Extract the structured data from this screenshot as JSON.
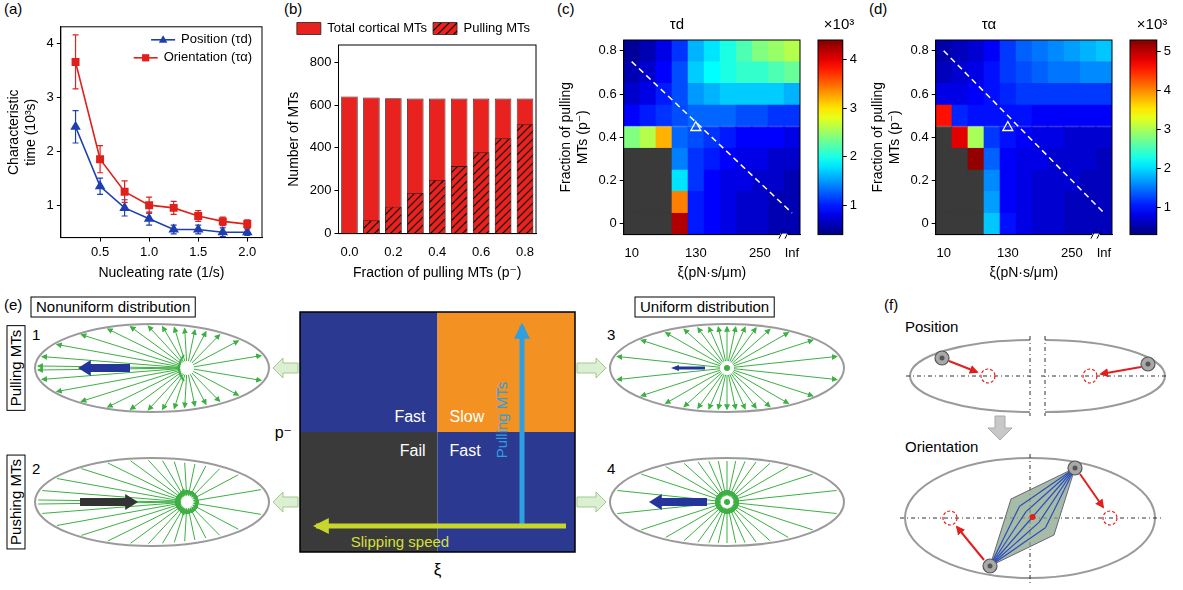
{
  "chart_data": [
    {
      "type": "line",
      "panel_label": "(a)",
      "x": [
        0.25,
        0.5,
        0.75,
        1.0,
        1.25,
        1.5,
        1.75,
        2.0
      ],
      "xlabel": "Nucleating rate (1/s)",
      "ylabel": "Characteristic time (10³s)",
      "xlim": [
        0.1,
        2.15
      ],
      "xticks": [
        0.5,
        {
          "value": 1,
          "label": "1.0"
        },
        1.5,
        {
          "value": 2,
          "label": "2.0"
        }
      ],
      "ylim": [
        0.4,
        4.3
      ],
      "yticks": [
        1,
        2,
        3,
        4
      ],
      "legend": "upper-right",
      "series": [
        {
          "name": "Position (τd)",
          "color": "#1f3fb0",
          "marker": "triangle",
          "values": [
            2.45,
            1.35,
            0.95,
            0.75,
            0.55,
            0.55,
            0.5,
            0.5
          ],
          "errors": [
            0.3,
            0.15,
            0.15,
            0.12,
            0.08,
            0.08,
            0.08,
            0.06
          ]
        },
        {
          "name": "Orientation (τα)",
          "color": "#e0201b",
          "marker": "square",
          "values": [
            3.65,
            1.85,
            1.25,
            1.0,
            0.95,
            0.8,
            0.7,
            0.65
          ],
          "errors": [
            0.5,
            0.25,
            0.2,
            0.15,
            0.12,
            0.1,
            0.08,
            0.08
          ]
        }
      ]
    },
    {
      "type": "bar",
      "panel_label": "(b)",
      "categories": [
        "0.0",
        null,
        "0.2",
        null,
        "0.4",
        null,
        "0.6",
        null,
        "0.8"
      ],
      "xlabel": "Fraction of pulling MTs (p⁻)",
      "ylabel": "Number of MTs",
      "ylim": [
        0,
        880
      ],
      "yticks": [
        0,
        200,
        400,
        600,
        800
      ],
      "legend": "top",
      "stacked": false,
      "series": [
        {
          "name": "Total cortical MTs",
          "color": "#e8231f",
          "values": [
            640,
            635,
            632,
            630,
            630,
            630,
            630,
            630,
            630
          ]
        },
        {
          "name": "Pulling MTs",
          "color": "#e8231f",
          "values": [
            0,
            62,
            125,
            190,
            250,
            315,
            380,
            445,
            510
          ]
        }
      ]
    },
    {
      "type": "heatmap",
      "panel_label": "(c)",
      "title": "τd",
      "categories": [
        10,
        null,
        null,
        null,
        130,
        null,
        null,
        null,
        250,
        null,
        "Inf"
      ],
      "xlabel": "ξ(pN·s/μm)",
      "y": [
        0,
        0.1,
        0.2,
        0.3,
        0.4,
        0.5,
        0.6,
        0.7,
        0.8
      ],
      "ylabel": "Fraction of pulling MTs (p⁻)",
      "ylim": [
        -0.05,
        0.85
      ],
      "yticks": [
        0,
        0.2,
        0.4,
        0.6,
        0.8
      ],
      "cells": [
        [
          null,
          null,
          null,
          4.2,
          1.0,
          0.9,
          0.8,
          0.7,
          0.7,
          0.6,
          0.6
        ],
        [
          null,
          null,
          null,
          3.4,
          1.0,
          0.9,
          0.8,
          0.7,
          0.7,
          0.6,
          0.6
        ],
        [
          null,
          null,
          null,
          1.8,
          1.1,
          0.9,
          0.8,
          0.8,
          0.7,
          0.7,
          0.6
        ],
        [
          null,
          null,
          null,
          1.4,
          1.1,
          1.0,
          0.9,
          0.8,
          0.8,
          0.7,
          0.7
        ],
        [
          2.4,
          2.6,
          3.2,
          1.3,
          1.2,
          1.1,
          1.0,
          0.9,
          0.9,
          0.9,
          0.8
        ],
        [
          0.9,
          1.0,
          1.1,
          1.2,
          1.3,
          1.3,
          1.3,
          1.2,
          1.2,
          1.1,
          1.1
        ],
        [
          0.7,
          0.8,
          1.0,
          1.2,
          1.5,
          1.6,
          1.7,
          1.7,
          1.7,
          1.7,
          1.6
        ],
        [
          0.6,
          0.7,
          0.9,
          1.2,
          1.7,
          1.9,
          2.0,
          2.1,
          2.1,
          2.2,
          2.3
        ],
        [
          0.5,
          0.6,
          0.8,
          1.1,
          1.6,
          1.8,
          2.0,
          2.2,
          2.4,
          2.5,
          2.6
        ]
      ],
      "colorbar": {
        "label": "×10³",
        "lim": [
          0.4,
          4.4
        ],
        "ticks": [
          1,
          2,
          3,
          4
        ]
      },
      "dashed_line": {
        "x": [
          10,
          "Inf"
        ],
        "y": [
          0.75,
          0.05
        ]
      },
      "highlight": {
        "x": 130,
        "y": 0.45,
        "marker": "triangle"
      }
    },
    {
      "type": "heatmap",
      "panel_label": "(d)",
      "title": "τα",
      "categories": [
        10,
        null,
        null,
        null,
        130,
        null,
        null,
        null,
        250,
        null,
        "Inf"
      ],
      "xlabel": "ξ(pN·s/μm)",
      "y": [
        0,
        0.1,
        0.2,
        0.3,
        0.4,
        0.5,
        0.6,
        0.7,
        0.8
      ],
      "ylabel": "Fraction of pulling MTs (p⁻)",
      "ylim": [
        -0.05,
        0.85
      ],
      "yticks": [
        0,
        0.2,
        0.4,
        0.6,
        0.8
      ],
      "cells": [
        [
          null,
          null,
          null,
          1.9,
          1.0,
          0.8,
          0.7,
          0.7,
          0.6,
          0.6,
          0.6
        ],
        [
          null,
          null,
          null,
          1.7,
          0.9,
          0.8,
          0.7,
          0.7,
          0.6,
          0.6,
          0.6
        ],
        [
          null,
          null,
          null,
          1.6,
          0.9,
          0.8,
          0.7,
          0.7,
          0.7,
          0.6,
          0.6
        ],
        [
          null,
          null,
          5.2,
          1.4,
          0.9,
          0.8,
          0.8,
          0.7,
          0.7,
          0.7,
          0.6
        ],
        [
          null,
          4.8,
          3.0,
          1.2,
          1.0,
          0.9,
          0.8,
          0.8,
          0.7,
          0.7,
          0.7
        ],
        [
          4.6,
          1.1,
          1.0,
          1.0,
          1.0,
          1.0,
          0.9,
          0.9,
          0.9,
          0.9,
          0.9
        ],
        [
          0.8,
          0.8,
          0.9,
          1.0,
          1.1,
          1.2,
          1.2,
          1.2,
          1.2,
          1.2,
          1.2
        ],
        [
          0.6,
          0.7,
          0.8,
          1.0,
          1.2,
          1.3,
          1.4,
          1.5,
          1.5,
          1.6,
          1.6
        ],
        [
          0.5,
          0.6,
          0.7,
          0.9,
          1.2,
          1.4,
          1.5,
          1.6,
          1.7,
          1.8,
          1.9
        ]
      ],
      "colorbar": {
        "label": "×10³",
        "lim": [
          0.3,
          5.3
        ],
        "ticks": [
          1,
          2,
          3,
          4,
          5
        ]
      },
      "dashed_line": {
        "x": [
          10,
          "Inf"
        ],
        "y": [
          0.8,
          0.05
        ]
      },
      "highlight": {
        "x": 130,
        "y": 0.45,
        "marker": "triangle"
      }
    }
  ],
  "diagram_e": {
    "panel_label": "(e)",
    "headers": [
      "Nonuniform distribution",
      "Uniform distribution"
    ],
    "row_labels": [
      "Pulling MTs",
      "Pushing MTs"
    ],
    "cases": [
      "1",
      "2",
      "3",
      "4"
    ],
    "grid": {
      "cells": [
        "Fast",
        "Slow",
        "Fail",
        "Fast"
      ],
      "y_label": "p⁻",
      "x_label": "ξ",
      "up_arrow": "Pulling MTs",
      "left_arrow": "Slipping speed"
    }
  },
  "diagram_f": {
    "panel_label": "(f)",
    "sections": [
      "Position",
      "Orientation"
    ]
  }
}
